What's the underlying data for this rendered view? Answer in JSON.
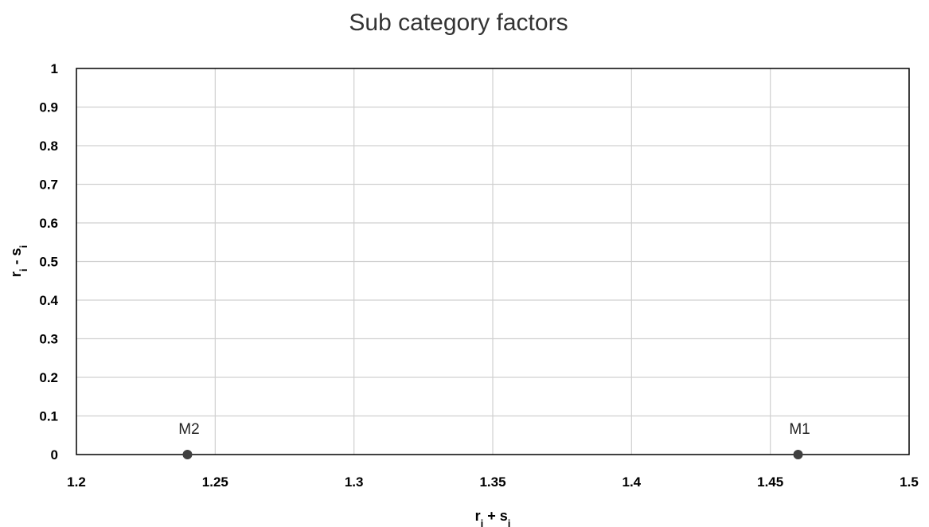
{
  "chart_data": {
    "type": "scatter",
    "title": "Sub category factors",
    "xlabel": {
      "base": "r",
      "sub1": "i",
      "mid": " + s",
      "sub2": "i"
    },
    "ylabel": {
      "base": "r",
      "sub1": "i",
      "mid": " - s",
      "sub2": "i"
    },
    "xlim": [
      1.2,
      1.5
    ],
    "ylim": [
      0,
      1
    ],
    "x_ticks": [
      "1.2",
      "1.25",
      "1.3",
      "1.35",
      "1.4",
      "1.45",
      "1.5"
    ],
    "y_ticks": [
      "0",
      "0.1",
      "0.2",
      "0.3",
      "0.4",
      "0.5",
      "0.6",
      "0.7",
      "0.8",
      "0.9",
      "1"
    ],
    "grid": true,
    "legend": "none",
    "points": [
      {
        "label": "M1",
        "x": 1.46,
        "y": 0
      },
      {
        "label": "M2",
        "x": 1.24,
        "y": 0
      }
    ],
    "marker_color": "#404040",
    "grid_color": "#d0d0d0"
  }
}
